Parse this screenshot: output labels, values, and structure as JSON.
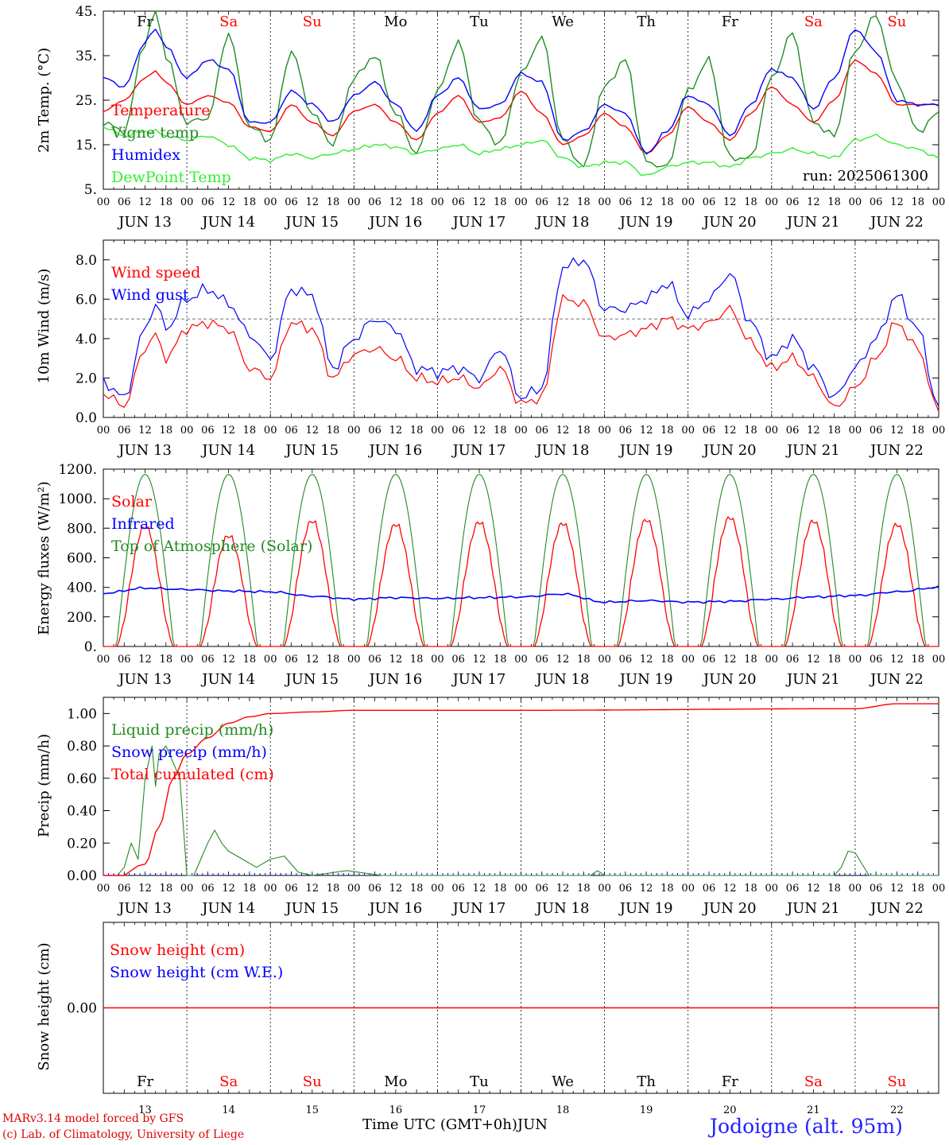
{
  "footer": {
    "model": "MARv3.14 model forced by GFS",
    "copyright": "(c) Lab. of Climatology, University of Liege",
    "time_label": "Time UTC (GMT+0h)",
    "month": "JUN",
    "location": "Jodoigne (alt. 95m)"
  },
  "colors": {
    "red": "#ff0000",
    "green": "#228b22",
    "blue": "#0000ff",
    "lime": "#33ee33",
    "weekend": "#ff0000",
    "footer_left": "#dd0000",
    "location": "#2222ff"
  },
  "chart_data": [
    {
      "type": "line",
      "ylabel": "2m Temp. (°C)",
      "ylim": [
        5,
        45
      ],
      "yticks": [
        "5.",
        "15.",
        "25.",
        "35.",
        "45."
      ],
      "day_labels": [
        "Fr",
        "Sa",
        "Su",
        "Mo",
        "Tu",
        "We",
        "Th",
        "Fr",
        "Sa",
        "Su"
      ],
      "weekend_days": [
        1,
        2,
        8,
        9
      ],
      "hour_labels": [
        "00",
        "06",
        "12",
        "18"
      ],
      "date_labels": [
        "JUN 13",
        "JUN 14",
        "JUN 15",
        "JUN 16",
        "JUN 17",
        "JUN 18",
        "JUN 19",
        "JUN 20",
        "JUN 21",
        "JUN 22"
      ],
      "annotation": "run: 2025061300",
      "series": [
        {
          "name": "Temperature",
          "color": "red",
          "x": [
            0,
            6,
            12,
            15,
            18,
            24,
            30,
            36,
            42,
            48,
            54,
            60,
            66,
            72,
            78,
            84,
            90,
            96,
            102,
            108,
            114,
            120,
            126,
            132,
            138,
            144,
            150,
            156,
            162,
            168,
            174,
            180,
            186,
            192,
            198,
            204,
            210,
            216,
            222,
            228,
            234,
            240
          ],
          "y": [
            22.5,
            25,
            30,
            31.5,
            29,
            24,
            26,
            24.5,
            19,
            18,
            24,
            20,
            17,
            22.5,
            24,
            20,
            16,
            22,
            26,
            20,
            21,
            27,
            22,
            15,
            17,
            22,
            19,
            13,
            17,
            23.5,
            20,
            16,
            22,
            28,
            24,
            20,
            25,
            34,
            31,
            24,
            24,
            24
          ]
        },
        {
          "name": "Vigne temp",
          "color": "green",
          "x": [
            0,
            6,
            12,
            15,
            18,
            24,
            30,
            36,
            42,
            48,
            54,
            60,
            66,
            72,
            78,
            84,
            90,
            96,
            102,
            108,
            114,
            120,
            126,
            132,
            138,
            144,
            150,
            156,
            162,
            168,
            174,
            180,
            186,
            192,
            198,
            204,
            210,
            216,
            222,
            228,
            234,
            240
          ],
          "y": [
            20,
            18,
            38,
            45,
            35,
            20,
            21,
            40,
            19,
            16,
            36,
            22,
            15,
            30,
            35,
            22,
            13,
            27,
            38,
            20,
            15,
            31,
            39,
            16,
            10,
            28,
            34,
            11,
            10,
            27,
            34,
            12,
            12,
            30,
            40,
            20,
            17,
            36,
            44,
            29,
            18,
            22
          ]
        },
        {
          "name": "Humidex",
          "color": "blue",
          "x": [
            0,
            6,
            12,
            15,
            18,
            24,
            30,
            36,
            42,
            48,
            54,
            60,
            66,
            72,
            78,
            84,
            90,
            96,
            102,
            108,
            114,
            120,
            126,
            132,
            138,
            144,
            150,
            156,
            162,
            168,
            174,
            180,
            186,
            192,
            198,
            204,
            210,
            216,
            222,
            228,
            234,
            240
          ],
          "y": [
            30,
            28,
            38,
            41,
            37,
            30,
            34,
            32,
            20,
            20,
            27,
            24,
            20,
            26,
            29,
            24,
            18,
            26,
            30,
            23,
            24,
            31,
            29,
            16,
            18,
            24,
            22,
            13,
            18,
            26,
            24,
            17,
            24,
            32,
            30,
            23,
            30,
            41,
            36,
            25,
            24,
            24
          ]
        },
        {
          "name": "DewPoint Temp",
          "color": "lime",
          "x": [
            0,
            6,
            12,
            15,
            18,
            24,
            30,
            36,
            42,
            48,
            54,
            60,
            66,
            72,
            78,
            84,
            90,
            96,
            102,
            108,
            114,
            120,
            126,
            132,
            138,
            144,
            150,
            156,
            162,
            168,
            174,
            180,
            186,
            192,
            198,
            204,
            210,
            216,
            222,
            228,
            234,
            240
          ],
          "y": [
            19,
            17,
            18,
            18,
            17,
            16,
            17,
            15,
            12,
            11.5,
            13,
            12,
            13,
            14,
            15,
            14.5,
            13,
            14,
            15,
            13,
            14,
            15,
            16,
            12,
            10,
            11,
            11,
            8,
            10,
            11,
            11,
            10,
            12,
            13,
            14,
            13,
            12,
            16,
            17,
            15,
            14,
            12
          ]
        }
      ]
    },
    {
      "type": "line",
      "ylabel": "10m Wind (m/s)",
      "ylim": [
        0,
        9
      ],
      "yticks": [
        "0.0",
        "2.0",
        "4.0",
        "6.0",
        "8.0"
      ],
      "ref_line": 5,
      "hour_labels": [
        "00",
        "06",
        "12",
        "18"
      ],
      "date_labels": [
        "JUN 13",
        "JUN 14",
        "JUN 15",
        "JUN 16",
        "JUN 17",
        "JUN 18",
        "JUN 19",
        "JUN 20",
        "JUN 21",
        "JUN 22"
      ],
      "series": [
        {
          "name": "Wind speed",
          "color": "red",
          "x": [
            0,
            6,
            12,
            15,
            18,
            24,
            30,
            36,
            42,
            48,
            54,
            60,
            66,
            72,
            78,
            84,
            90,
            96,
            102,
            108,
            114,
            120,
            126,
            132,
            138,
            144,
            150,
            156,
            162,
            168,
            174,
            180,
            186,
            192,
            198,
            204,
            210,
            216,
            222,
            228,
            234,
            240
          ],
          "y": [
            1.2,
            0.6,
            3.5,
            4.2,
            3.0,
            4.5,
            4.8,
            4.5,
            2.5,
            2.0,
            4.8,
            4.5,
            2.0,
            3.2,
            3.5,
            3.0,
            2.0,
            1.8,
            2.0,
            1.5,
            2.5,
            0.7,
            1.0,
            6.0,
            5.8,
            4.0,
            4.2,
            4.5,
            5.0,
            4.5,
            4.8,
            5.5,
            3.8,
            2.5,
            3.0,
            2.0,
            0.5,
            1.5,
            3.0,
            4.8,
            3.5,
            0.3
          ]
        },
        {
          "name": "Wind gust",
          "color": "blue",
          "x": [
            0,
            6,
            12,
            15,
            18,
            24,
            30,
            36,
            42,
            48,
            54,
            60,
            66,
            72,
            78,
            84,
            90,
            96,
            102,
            108,
            114,
            120,
            126,
            132,
            138,
            144,
            150,
            156,
            162,
            168,
            174,
            180,
            186,
            192,
            198,
            204,
            210,
            216,
            222,
            228,
            234,
            240
          ],
          "y": [
            1.8,
            1.0,
            4.5,
            5.8,
            4.5,
            6.0,
            6.5,
            5.8,
            4.2,
            3.0,
            6.5,
            6.2,
            2.5,
            4.0,
            5.0,
            4.5,
            2.5,
            2.3,
            2.5,
            2.0,
            3.5,
            1.0,
            1.5,
            7.6,
            8.0,
            5.5,
            5.5,
            6.0,
            6.8,
            5.2,
            6.0,
            7.3,
            4.8,
            3.0,
            4.0,
            2.5,
            1.0,
            2.5,
            4.0,
            6.2,
            4.5,
            0.5
          ]
        }
      ]
    },
    {
      "type": "line",
      "ylabel": "Energy fluxes (W/m²)",
      "ylim": [
        0,
        1200
      ],
      "yticks": [
        "0.",
        "200.",
        "400.",
        "600.",
        "800.",
        "1000.",
        "1200."
      ],
      "hour_labels": [
        "00",
        "06",
        "12",
        "18"
      ],
      "date_labels": [
        "JUN 13",
        "JUN 14",
        "JUN 15",
        "JUN 16",
        "JUN 17",
        "JUN 18",
        "JUN 19",
        "JUN 20",
        "JUN 21",
        "JUN 22"
      ],
      "daylight_hours": [
        3.8,
        20.2
      ],
      "toa_peak": 1165,
      "solar_peaks": [
        860,
        820,
        885,
        870,
        880,
        875,
        890,
        900,
        885,
        870
      ],
      "series": [
        {
          "name": "Solar",
          "color": "red"
        },
        {
          "name": "Infrared",
          "color": "blue",
          "x": [
            0,
            12,
            24,
            36,
            48,
            60,
            72,
            84,
            96,
            108,
            120,
            132,
            144,
            156,
            168,
            180,
            192,
            204,
            216,
            228,
            240
          ],
          "y": [
            360,
            395,
            385,
            375,
            370,
            340,
            320,
            330,
            325,
            330,
            335,
            355,
            300,
            310,
            300,
            305,
            320,
            335,
            345,
            370,
            400
          ]
        },
        {
          "name": "Top of Atmosphere (Solar)",
          "color": "green"
        }
      ]
    },
    {
      "type": "line",
      "ylabel": "Precip (mm/h)",
      "ylim": [
        0,
        1.1
      ],
      "yticks": [
        "0.00",
        "0.20",
        "0.40",
        "0.60",
        "0.80",
        "1.00"
      ],
      "hour_labels": [
        "00",
        "06",
        "12",
        "18"
      ],
      "date_labels": [
        "JUN 13",
        "JUN 14",
        "JUN 15",
        "JUN 16",
        "JUN 17",
        "JUN 18",
        "JUN 19",
        "JUN 20",
        "JUN 21",
        "JUN 22"
      ],
      "series": [
        {
          "name": "Liquid precip (mm/h)",
          "color": "green",
          "x": [
            0,
            4,
            6,
            8,
            10,
            12,
            14,
            15,
            16,
            18,
            20,
            22,
            24,
            26,
            28,
            30,
            32,
            34,
            36,
            40,
            44,
            48,
            52,
            56,
            60,
            70,
            80,
            140,
            142,
            144,
            210,
            212,
            214,
            216,
            220,
            240
          ],
          "y": [
            0,
            0,
            0.05,
            0.2,
            0.1,
            0.6,
            0.8,
            0.55,
            0.75,
            0.8,
            0.7,
            0.6,
            0,
            0,
            0.1,
            0.2,
            0.28,
            0.2,
            0.15,
            0.1,
            0.05,
            0.1,
            0.12,
            0.02,
            0,
            0.03,
            0,
            0,
            0.03,
            0,
            0,
            0.05,
            0.15,
            0.14,
            0,
            0
          ]
        },
        {
          "name": "Snow precip (mm/h)",
          "color": "blue"
        },
        {
          "name": "Total cumulated (cm)",
          "color": "red",
          "x": [
            0,
            6,
            8,
            10,
            12,
            16,
            20,
            24,
            30,
            36,
            42,
            48,
            60,
            72,
            120,
            216,
            228,
            240
          ],
          "y": [
            0,
            0,
            0.03,
            0.06,
            0.07,
            0.3,
            0.6,
            0.75,
            0.85,
            0.94,
            0.98,
            1.0,
            1.01,
            1.02,
            1.02,
            1.03,
            1.06,
            1.06
          ]
        }
      ]
    },
    {
      "type": "line",
      "ylabel": "Snow height (cm)",
      "yticks": [
        "0.00"
      ],
      "day_labels": [
        "Fr",
        "Sa",
        "Su",
        "Mo",
        "Tu",
        "We",
        "Th",
        "Fr",
        "Sa",
        "Su"
      ],
      "day_numbers": [
        "13",
        "14",
        "15",
        "16",
        "17",
        "18",
        "19",
        "20",
        "21",
        "22"
      ],
      "weekend_days": [
        1,
        2,
        8,
        9
      ],
      "series": [
        {
          "name": "Snow height (cm)",
          "color": "red",
          "x": [
            0,
            240
          ],
          "y": [
            0,
            0
          ]
        },
        {
          "name": "Snow height (cm W.E.)",
          "color": "blue"
        }
      ]
    }
  ]
}
